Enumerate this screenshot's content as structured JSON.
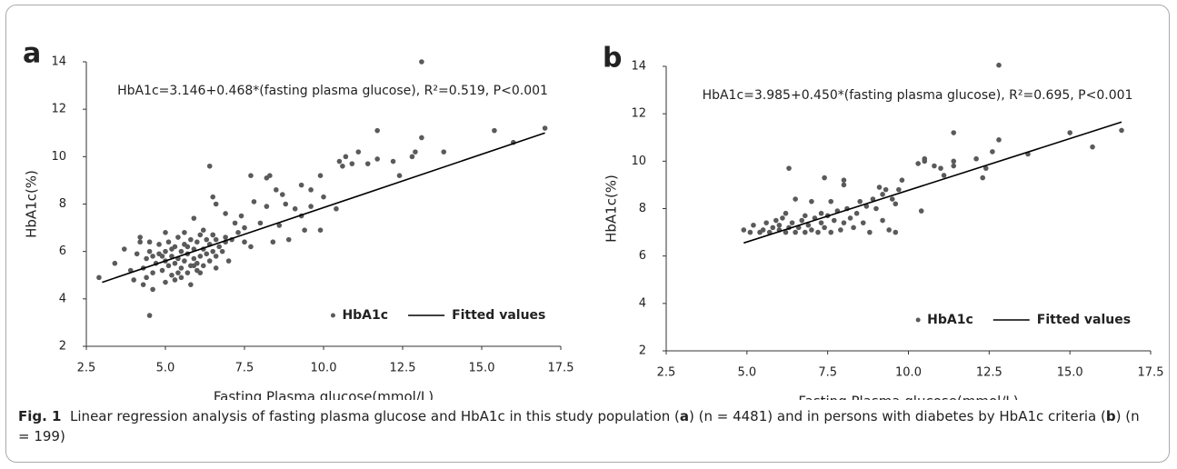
{
  "chart_data": [
    {
      "type": "scatter",
      "panel_label": "a",
      "annotation": "HbA1c=3.146+0.468*(fasting plasma glucose), R²=0.519, P<0.001",
      "x_label": "Fasting Plasma glucose(mmol/L)",
      "y_label": "HbA1c(%)",
      "xlim": [
        2.5,
        17.5
      ],
      "xticks": [
        2.5,
        {
          "value": 5,
          "label": "5.0"
        },
        7.5,
        {
          "value": 10,
          "label": "10.0"
        },
        12.5,
        {
          "value": 15,
          "label": "15.0"
        },
        17.5
      ],
      "ylim": [
        2,
        14
      ],
      "yticks": [
        2,
        4,
        6,
        8,
        10,
        12,
        14
      ],
      "grid": false,
      "legend": "lower right",
      "series": [
        {
          "name": "HbA1c",
          "color": "#5a5a5a",
          "x": [
            13.1,
            4.5,
            2.9,
            17.0,
            16.0,
            15.4,
            13.1,
            11.7,
            11.7,
            11.4,
            10.7,
            10.5,
            10.6,
            12.2,
            12.8,
            12.9,
            13.8,
            12.4,
            11.1,
            10.9,
            9.9,
            9.3,
            9.6,
            9.6,
            10.4,
            9.9,
            9.3,
            8.7,
            8.2,
            8.3,
            7.7,
            6.4,
            8.5,
            8.8,
            9.1,
            8.2,
            7.8,
            7.4,
            6.5,
            8.0,
            7.5,
            6.9,
            7.2,
            8.6,
            9.4,
            10.0,
            6.6,
            5.9,
            6.9,
            7.7,
            8.4,
            8.9,
            3.4,
            3.7,
            3.9,
            4.0,
            4.2,
            4.3,
            4.6,
            5.0,
            5.5,
            6.1,
            6.6,
            7.0,
            5.8,
            4.1,
            4.2,
            7.5,
            6.5,
            4.3,
            4.4,
            4.5,
            4.6,
            4.7,
            4.8,
            4.8,
            4.9,
            5.0,
            5.0,
            5.1,
            5.1,
            5.2,
            5.2,
            5.3,
            5.3,
            5.4,
            5.4,
            5.5,
            5.5,
            5.6,
            5.6,
            5.7,
            5.7,
            5.8,
            5.8,
            5.9,
            5.9,
            6.0,
            6.0,
            6.1,
            6.1,
            6.2,
            6.2,
            6.3,
            6.3,
            6.4,
            6.4,
            6.5,
            6.6,
            6.6,
            6.7,
            6.8,
            6.9,
            4.5,
            4.6,
            5.0,
            5.4,
            5.6,
            6.0,
            6.2,
            4.9,
            5.7,
            5.2,
            5.9,
            6.5,
            7.1,
            7.3,
            4.4,
            5.3
          ],
          "values": [
            14.0,
            3.3,
            4.9,
            11.2,
            10.6,
            11.1,
            10.8,
            11.1,
            9.9,
            9.7,
            10.0,
            9.8,
            9.6,
            9.8,
            10.0,
            10.2,
            10.2,
            9.2,
            10.2,
            9.7,
            9.2,
            8.8,
            8.6,
            7.9,
            7.8,
            6.9,
            7.5,
            8.4,
            9.1,
            9.2,
            9.2,
            9.6,
            8.6,
            8.0,
            7.8,
            7.9,
            8.1,
            7.5,
            8.3,
            7.2,
            7.0,
            7.6,
            7.2,
            7.1,
            6.9,
            8.3,
            8.0,
            7.4,
            6.6,
            6.2,
            6.4,
            6.5,
            5.5,
            6.1,
            5.2,
            4.8,
            6.6,
            4.6,
            4.4,
            4.7,
            4.9,
            5.1,
            5.3,
            5.6,
            4.6,
            5.9,
            6.4,
            6.4,
            6.7,
            5.3,
            5.7,
            6.0,
            5.1,
            5.5,
            5.9,
            6.3,
            5.2,
            5.6,
            6.0,
            5.4,
            6.4,
            5.8,
            5.0,
            5.5,
            6.2,
            5.7,
            6.6,
            5.3,
            6.0,
            5.6,
            6.3,
            5.1,
            5.9,
            5.4,
            6.5,
            5.7,
            6.1,
            5.5,
            6.4,
            5.8,
            6.7,
            5.4,
            6.1,
            5.9,
            6.5,
            5.6,
            6.3,
            6.0,
            5.8,
            6.5,
            6.2,
            6.0,
            6.4,
            6.4,
            5.8,
            6.8,
            5.1,
            6.8,
            5.2,
            6.9,
            5.8,
            6.2,
            6.1,
            5.4,
            6.7,
            6.5,
            6.8,
            4.9,
            4.8
          ]
        },
        {
          "name": "Fitted values",
          "color": "#000000",
          "type": "line",
          "x": [
            3,
            17
          ],
          "values": [
            4.7,
            11.0
          ]
        }
      ]
    },
    {
      "type": "scatter",
      "panel_label": "b",
      "annotation": "HbA1c=3.985+0.450*(fasting plasma glucose), R²=0.695, P<0.001",
      "x_label": "Fasting Plasma glucose(mmol/L)",
      "y_label": "HbA1c(%)",
      "xlim": [
        2.5,
        17.5
      ],
      "xticks": [
        2.5,
        {
          "value": 5,
          "label": "5.0"
        },
        7.5,
        {
          "value": 10,
          "label": "10.0"
        },
        12.5,
        {
          "value": 15,
          "label": "15.0"
        },
        17.5
      ],
      "ylim": [
        2,
        14
      ],
      "yticks": [
        2,
        4,
        6,
        8,
        10,
        12,
        14
      ],
      "grid": false,
      "legend": "lower right",
      "series": [
        {
          "name": "HbA1c",
          "color": "#5a5a5a",
          "x": [
            12.8,
            4.9,
            5.1,
            5.2,
            5.4,
            5.5,
            5.6,
            5.7,
            5.8,
            5.9,
            6.0,
            6.0,
            6.1,
            6.2,
            6.2,
            6.3,
            6.3,
            6.4,
            6.5,
            6.5,
            6.6,
            6.7,
            6.8,
            6.8,
            6.9,
            7.0,
            7.0,
            7.1,
            7.2,
            7.3,
            7.3,
            7.4,
            7.4,
            7.5,
            7.6,
            7.6,
            7.7,
            7.8,
            7.9,
            8.0,
            8.0,
            8.0,
            8.1,
            8.2,
            8.3,
            8.4,
            8.5,
            8.6,
            8.7,
            8.8,
            8.9,
            9.0,
            9.1,
            9.2,
            9.2,
            9.3,
            9.4,
            9.5,
            9.6,
            9.6,
            9.7,
            9.8,
            10.3,
            10.4,
            10.5,
            10.5,
            10.8,
            11.0,
            11.1,
            11.4,
            11.4,
            11.4,
            12.1,
            12.3,
            12.4,
            12.6,
            12.8,
            13.7,
            15.0,
            15.7,
            16.6
          ],
          "values": [
            14.05,
            7.1,
            7.0,
            7.3,
            7.0,
            7.1,
            7.4,
            7.0,
            7.2,
            7.5,
            7.1,
            7.3,
            7.6,
            7.0,
            7.8,
            9.7,
            7.2,
            7.4,
            8.4,
            7.0,
            7.2,
            7.5,
            7.0,
            7.7,
            7.3,
            8.3,
            7.1,
            7.6,
            7.0,
            7.4,
            7.8,
            9.3,
            7.2,
            7.7,
            7.0,
            8.3,
            7.5,
            7.9,
            7.1,
            9.2,
            9.0,
            7.4,
            8.0,
            7.6,
            7.2,
            7.8,
            8.3,
            7.4,
            8.1,
            7.0,
            8.4,
            8.0,
            8.9,
            8.6,
            7.5,
            8.8,
            7.1,
            8.4,
            8.2,
            7.0,
            8.8,
            9.2,
            9.9,
            7.9,
            10.0,
            10.1,
            9.8,
            9.7,
            9.4,
            11.2,
            10.0,
            9.8,
            10.1,
            9.3,
            9.7,
            10.4,
            10.9,
            10.3,
            11.2,
            10.6,
            11.3
          ]
        },
        {
          "name": "Fitted values",
          "color": "#000000",
          "type": "line",
          "x": [
            4.9,
            16.6
          ],
          "values": [
            6.55,
            11.65
          ]
        }
      ]
    }
  ],
  "caption": {
    "label": "Fig. 1",
    "parts": [
      "Linear regression analysis of fasting plasma glucose and HbA1c in this study population (",
      "a",
      ") (n = 4481) and in persons with diabetes by HbA1c criteria (",
      "b",
      ") (n = 199)"
    ]
  }
}
